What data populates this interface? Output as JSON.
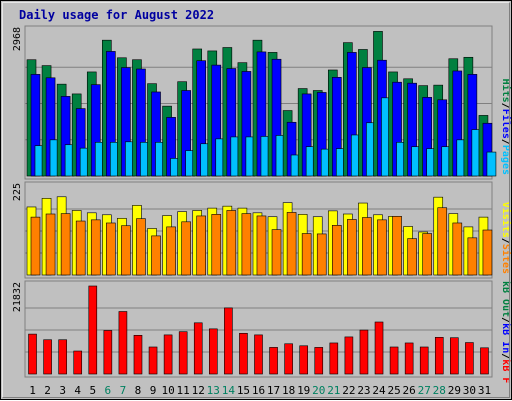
{
  "chart_data": {
    "type": "bar",
    "title": "Daily usage for August 2022",
    "categories": [
      "1",
      "2",
      "3",
      "4",
      "5",
      "6",
      "7",
      "8",
      "9",
      "10",
      "11",
      "12",
      "13",
      "14",
      "15",
      "16",
      "17",
      "18",
      "19",
      "20",
      "21",
      "22",
      "23",
      "24",
      "25",
      "26",
      "27",
      "28",
      "29",
      "30",
      "31"
    ],
    "weekend_days": [
      "6",
      "7",
      "13",
      "14",
      "20",
      "21",
      "27",
      "28"
    ],
    "panels": [
      {
        "ymax_label": "2968",
        "ymax": 2968,
        "right_label_parts": [
          "Pages",
          "/",
          "Files",
          "/",
          "Hits"
        ],
        "series": [
          {
            "name": "Hits",
            "color": "#008040",
            "values": [
              2380,
              2260,
              1880,
              1680,
              2130,
              2780,
              2420,
              2380,
              1890,
              1430,
              1930,
              2600,
              2560,
              2630,
              2320,
              2780,
              2530,
              1340,
              1790,
              1750,
              2170,
              2730,
              2590,
              2960,
              2130,
              1990,
              1850,
              1860,
              2400,
              2430,
              1240
            ]
          },
          {
            "name": "Files",
            "color": "#0000ff",
            "values": [
              2080,
              2010,
              1630,
              1380,
              1870,
              2550,
              2220,
              2190,
              1720,
              1200,
              1750,
              2360,
              2270,
              2200,
              2140,
              2540,
              2390,
              1100,
              1680,
              1710,
              2020,
              2530,
              2220,
              2370,
              1920,
              1900,
              1610,
              1560,
              2150,
              2080,
              1080
            ]
          },
          {
            "name": "Pages",
            "color": "#00c0ff",
            "values": [
              620,
              740,
              640,
              570,
              690,
              690,
              700,
              690,
              690,
              360,
              520,
              660,
              760,
              800,
              800,
              810,
              830,
              430,
              600,
              550,
              560,
              840,
              1090,
              1600,
              690,
              600,
              560,
              600,
              740,
              950,
              490
            ]
          }
        ]
      },
      {
        "ymax_label": "225",
        "ymax": 225,
        "right_label_parts": [
          "Sites",
          "/",
          "Visits"
        ],
        "series": [
          {
            "name": "Visits",
            "color": "#ffff00",
            "values": [
              174,
              196,
              200,
              165,
              159,
              154,
              145,
              178,
              119,
              152,
              162,
              165,
              171,
              176,
              171,
              159,
              149,
              185,
              155,
              149,
              164,
              156,
              184,
              154,
              150,
              124,
              110,
              199,
              157,
              123,
              148
            ]
          },
          {
            "name": "Sites",
            "color": "#ff8000",
            "values": [
              148,
              156,
              157,
              138,
              141,
              133,
              126,
              144,
              100,
              123,
              136,
              151,
              155,
              165,
              157,
              151,
              116,
              160,
              106,
              105,
              127,
              142,
              147,
              141,
              150,
              93,
              106,
              172,
              133,
              95,
              115
            ]
          }
        ]
      },
      {
        "ymax_label": "21832",
        "ymax": 21832,
        "right_label_parts": [
          "kB F",
          "/",
          "kB In",
          "/",
          "kB Out"
        ],
        "series": [
          {
            "name": "kB F",
            "color": "#ff0000",
            "values": [
              9900,
              8500,
              8500,
              5700,
              21832,
              10800,
              15500,
              9600,
              6700,
              9700,
              10500,
              12700,
              11200,
              16400,
              10100,
              9700,
              6600,
              7500,
              7000,
              6600,
              7700,
              9200,
              10900,
              12900,
              6700,
              7700,
              6700,
              9100,
              9000,
              7800,
              6500
            ]
          }
        ]
      }
    ]
  }
}
